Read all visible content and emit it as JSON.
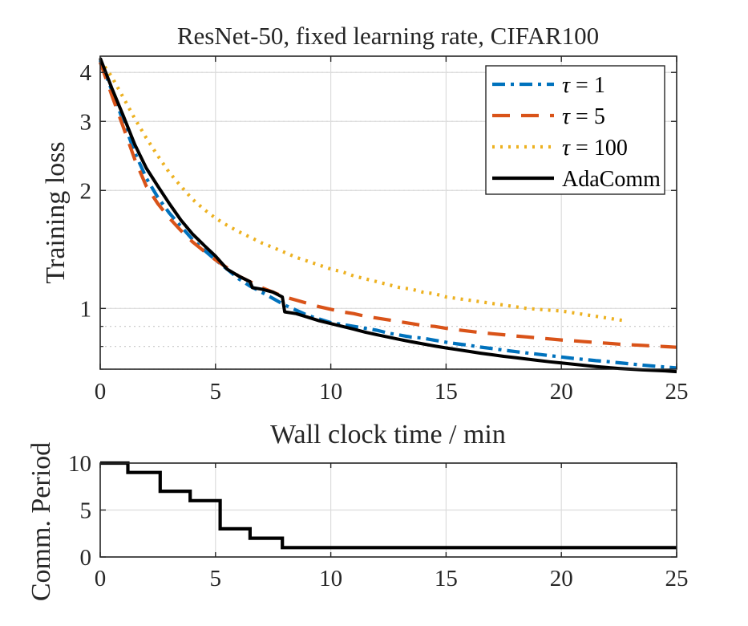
{
  "colors": {
    "tau1": "#0072BD",
    "tau5": "#D95319",
    "tau100": "#EDB120",
    "adacomm": "#000000"
  },
  "chart_data": [
    {
      "type": "line",
      "title": "ResNet-50, fixed learning rate, CIFAR100",
      "xlabel": "Wall clock time / min",
      "ylabel": "Training loss",
      "yscale": "log",
      "xlim": [
        0,
        25
      ],
      "ylim": [
        0.7,
        4.4
      ],
      "xticks": [
        "0",
        "5",
        "10",
        "15",
        "20",
        "25"
      ],
      "yticks": [
        {
          "value": 1,
          "label": "1"
        },
        {
          "value": 2,
          "label": "2"
        },
        {
          "value": 3,
          "label": "3"
        },
        {
          "value": 4,
          "label": "4"
        }
      ],
      "legend_position": "top-right",
      "series": [
        {
          "name": "τ = 1",
          "label_sym": "τ",
          "label_val": " = 1",
          "style": "dashdot",
          "color_key": "tau1",
          "points": [
            [
              0,
              4.3
            ],
            [
              0.5,
              3.6
            ],
            [
              1,
              3.0
            ],
            [
              1.5,
              2.5
            ],
            [
              2,
              2.15
            ],
            [
              2.5,
              1.92
            ],
            [
              3,
              1.75
            ],
            [
              3.5,
              1.62
            ],
            [
              4,
              1.5
            ],
            [
              4.5,
              1.41
            ],
            [
              5,
              1.33
            ],
            [
              5.5,
              1.26
            ],
            [
              6,
              1.19
            ],
            [
              6.5,
              1.14
            ],
            [
              7,
              1.1
            ],
            [
              7.5,
              1.06
            ],
            [
              8,
              1.02
            ],
            [
              8.5,
              0.99
            ],
            [
              9,
              0.96
            ],
            [
              9.5,
              0.94
            ],
            [
              10,
              0.92
            ],
            [
              10.5,
              0.91
            ],
            [
              11,
              0.9
            ],
            [
              11.5,
              0.89
            ],
            [
              12,
              0.88
            ],
            [
              12.5,
              0.865
            ],
            [
              13,
              0.855
            ],
            [
              13.5,
              0.845
            ],
            [
              14,
              0.84
            ],
            [
              14.5,
              0.83
            ],
            [
              15,
              0.82
            ],
            [
              15.5,
              0.812
            ],
            [
              16,
              0.805
            ],
            [
              16.5,
              0.797
            ],
            [
              17,
              0.79
            ],
            [
              17.5,
              0.783
            ],
            [
              18,
              0.776
            ],
            [
              18.5,
              0.77
            ],
            [
              19,
              0.764
            ],
            [
              19.5,
              0.758
            ],
            [
              20,
              0.752
            ],
            [
              20.5,
              0.746
            ],
            [
              21,
              0.741
            ],
            [
              21.5,
              0.736
            ],
            [
              22,
              0.732
            ],
            [
              22.5,
              0.727
            ],
            [
              23,
              0.722
            ],
            [
              23.5,
              0.717
            ],
            [
              24,
              0.713
            ],
            [
              24.5,
              0.709
            ],
            [
              25,
              0.705
            ]
          ]
        },
        {
          "name": "τ = 5",
          "label_sym": "τ",
          "label_val": " = 5",
          "style": "dashed",
          "color_key": "tau5",
          "points": [
            [
              0,
              4.25
            ],
            [
              0.5,
              3.5
            ],
            [
              1,
              2.9
            ],
            [
              1.5,
              2.4
            ],
            [
              2,
              2.05
            ],
            [
              2.5,
              1.85
            ],
            [
              3,
              1.7
            ],
            [
              3.5,
              1.58
            ],
            [
              4,
              1.48
            ],
            [
              4.5,
              1.4
            ],
            [
              5,
              1.33
            ],
            [
              5.5,
              1.27
            ],
            [
              6,
              1.21
            ],
            [
              6.5,
              1.17
            ],
            [
              7,
              1.13
            ],
            [
              7.5,
              1.1
            ],
            [
              8,
              1.07
            ],
            [
              8.5,
              1.05
            ],
            [
              9,
              1.03
            ],
            [
              9.5,
              1.01
            ],
            [
              10,
              0.995
            ],
            [
              10.5,
              0.98
            ],
            [
              11,
              0.97
            ],
            [
              11.5,
              0.955
            ],
            [
              12,
              0.945
            ],
            [
              12.5,
              0.935
            ],
            [
              13,
              0.925
            ],
            [
              13.5,
              0.915
            ],
            [
              14,
              0.905
            ],
            [
              14.5,
              0.9
            ],
            [
              15,
              0.89
            ],
            [
              15.5,
              0.882
            ],
            [
              16,
              0.875
            ],
            [
              16.5,
              0.868
            ],
            [
              17,
              0.862
            ],
            [
              17.5,
              0.857
            ],
            [
              18,
              0.851
            ],
            [
              18.5,
              0.846
            ],
            [
              19,
              0.841
            ],
            [
              19.5,
              0.836
            ],
            [
              20,
              0.831
            ],
            [
              20.5,
              0.827
            ],
            [
              21,
              0.823
            ],
            [
              21.5,
              0.819
            ],
            [
              22,
              0.815
            ],
            [
              22.5,
              0.811
            ],
            [
              23,
              0.808
            ],
            [
              23.5,
              0.805
            ],
            [
              24,
              0.802
            ],
            [
              24.5,
              0.799
            ],
            [
              25,
              0.796
            ]
          ]
        },
        {
          "name": "τ = 100",
          "label_sym": "τ",
          "label_val": " = 100",
          "style": "dotted",
          "color_key": "tau100",
          "points": [
            [
              0,
              4.3
            ],
            [
              0.5,
              3.9
            ],
            [
              1,
              3.45
            ],
            [
              1.5,
              3.05
            ],
            [
              2,
              2.72
            ],
            [
              2.5,
              2.45
            ],
            [
              3,
              2.22
            ],
            [
              3.5,
              2.05
            ],
            [
              4,
              1.9
            ],
            [
              4.5,
              1.79
            ],
            [
              5,
              1.7
            ],
            [
              5.5,
              1.63
            ],
            [
              6,
              1.57
            ],
            [
              6.5,
              1.52
            ],
            [
              7,
              1.47
            ],
            [
              7.5,
              1.43
            ],
            [
              8,
              1.39
            ],
            [
              8.5,
              1.35
            ],
            [
              9,
              1.32
            ],
            [
              9.5,
              1.29
            ],
            [
              10,
              1.26
            ],
            [
              10.5,
              1.24
            ],
            [
              11,
              1.21
            ],
            [
              11.5,
              1.19
            ],
            [
              12,
              1.17
            ],
            [
              12.5,
              1.15
            ],
            [
              13,
              1.13
            ],
            [
              13.5,
              1.12
            ],
            [
              14,
              1.1
            ],
            [
              14.5,
              1.09
            ],
            [
              15,
              1.07
            ],
            [
              15.5,
              1.06
            ],
            [
              16,
              1.05
            ],
            [
              16.5,
              1.04
            ],
            [
              17,
              1.03
            ],
            [
              17.5,
              1.02
            ],
            [
              18,
              1.01
            ],
            [
              18.5,
              1.0
            ],
            [
              19,
              0.995
            ],
            [
              19.5,
              0.99
            ],
            [
              20,
              0.985
            ],
            [
              20.5,
              0.975
            ],
            [
              21,
              0.965
            ],
            [
              21.5,
              0.955
            ],
            [
              22,
              0.945
            ],
            [
              22.5,
              0.935
            ],
            [
              22.8,
              0.93
            ]
          ]
        },
        {
          "name": "AdaComm",
          "label_sym": "",
          "label_val": "AdaComm",
          "style": "solid",
          "color_key": "adacomm",
          "points": [
            [
              0,
              4.35
            ],
            [
              0.5,
              3.65
            ],
            [
              1,
              3.1
            ],
            [
              1.5,
              2.62
            ],
            [
              2,
              2.28
            ],
            [
              2.5,
              2.05
            ],
            [
              3,
              1.85
            ],
            [
              3.5,
              1.68
            ],
            [
              4,
              1.55
            ],
            [
              4.5,
              1.45
            ],
            [
              5,
              1.36
            ],
            [
              5.3,
              1.3
            ],
            [
              5.5,
              1.26
            ],
            [
              6,
              1.21
            ],
            [
              6.5,
              1.17
            ],
            [
              6.6,
              1.13
            ],
            [
              7,
              1.12
            ],
            [
              7.5,
              1.1
            ],
            [
              7.9,
              1.07
            ],
            [
              8.0,
              0.98
            ],
            [
              8.5,
              0.97
            ],
            [
              9,
              0.95
            ],
            [
              9.5,
              0.93
            ],
            [
              10,
              0.915
            ],
            [
              10.5,
              0.9
            ],
            [
              11,
              0.885
            ],
            [
              11.5,
              0.87
            ],
            [
              12,
              0.857
            ],
            [
              12.5,
              0.845
            ],
            [
              13,
              0.833
            ],
            [
              13.5,
              0.822
            ],
            [
              14,
              0.812
            ],
            [
              14.5,
              0.802
            ],
            [
              15,
              0.793
            ],
            [
              15.5,
              0.785
            ],
            [
              16,
              0.777
            ],
            [
              16.5,
              0.769
            ],
            [
              17,
              0.762
            ],
            [
              17.5,
              0.755
            ],
            [
              18,
              0.749
            ],
            [
              18.5,
              0.743
            ],
            [
              19,
              0.737
            ],
            [
              19.5,
              0.731
            ],
            [
              20,
              0.726
            ],
            [
              20.5,
              0.721
            ],
            [
              21,
              0.716
            ],
            [
              21.5,
              0.711
            ],
            [
              22,
              0.707
            ],
            [
              22.5,
              0.703
            ],
            [
              23,
              0.7
            ],
            [
              23.5,
              0.697
            ],
            [
              24,
              0.695
            ],
            [
              24.5,
              0.693
            ],
            [
              25,
              0.69
            ]
          ]
        }
      ]
    },
    {
      "type": "line",
      "xlabel": "",
      "ylabel": "Comm. Period",
      "xlim": [
        0,
        25
      ],
      "ylim": [
        0,
        10
      ],
      "xticks": [
        "0",
        "5",
        "10",
        "15",
        "20",
        "25"
      ],
      "yticks": [
        {
          "value": 0,
          "label": "0"
        },
        {
          "value": 5,
          "label": "5"
        },
        {
          "value": 10,
          "label": "10"
        }
      ],
      "series": [
        {
          "name": "AdaComm",
          "style": "step",
          "color_key": "adacomm",
          "points": [
            [
              0,
              10
            ],
            [
              1.2,
              10
            ],
            [
              1.2,
              9
            ],
            [
              2.6,
              9
            ],
            [
              2.6,
              7
            ],
            [
              3.9,
              7
            ],
            [
              3.9,
              6
            ],
            [
              5.2,
              6
            ],
            [
              5.2,
              3
            ],
            [
              6.5,
              3
            ],
            [
              6.5,
              2
            ],
            [
              7.9,
              2
            ],
            [
              7.9,
              1
            ],
            [
              25,
              1
            ]
          ]
        }
      ]
    }
  ]
}
